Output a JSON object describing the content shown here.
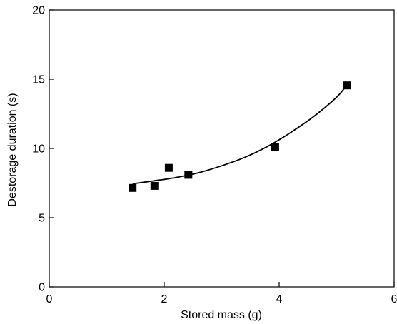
{
  "chart_data": {
    "type": "scatter",
    "title": "",
    "xlabel": "Stored mass (g)",
    "ylabel": "Destorage duration (s)",
    "xlim": [
      0,
      6
    ],
    "ylim": [
      0,
      20
    ],
    "xticks": [
      0,
      2,
      4,
      6
    ],
    "yticks": [
      0,
      5,
      10,
      15,
      20
    ],
    "xtick_labels": [
      "0",
      "2",
      "4",
      "6"
    ],
    "ytick_labels": [
      "0",
      "5",
      "10",
      "15",
      "20"
    ],
    "grid": false,
    "legend": "none",
    "series": [
      {
        "marker": "square",
        "color": "#000000",
        "x": [
          1.45,
          1.83,
          2.08,
          2.42,
          3.93,
          5.18
        ],
        "y": [
          7.15,
          7.3,
          8.6,
          8.1,
          10.1,
          14.55
        ]
      }
    ],
    "fit_curve": {
      "style": "solid",
      "color": "#000000",
      "x": [
        1.45,
        1.8,
        2.2,
        2.6,
        3.0,
        3.4,
        3.8,
        4.2,
        4.6,
        5.0,
        5.18
      ],
      "y": [
        7.45,
        7.65,
        7.9,
        8.25,
        8.75,
        9.35,
        10.15,
        11.15,
        12.3,
        13.7,
        14.6
      ]
    }
  }
}
